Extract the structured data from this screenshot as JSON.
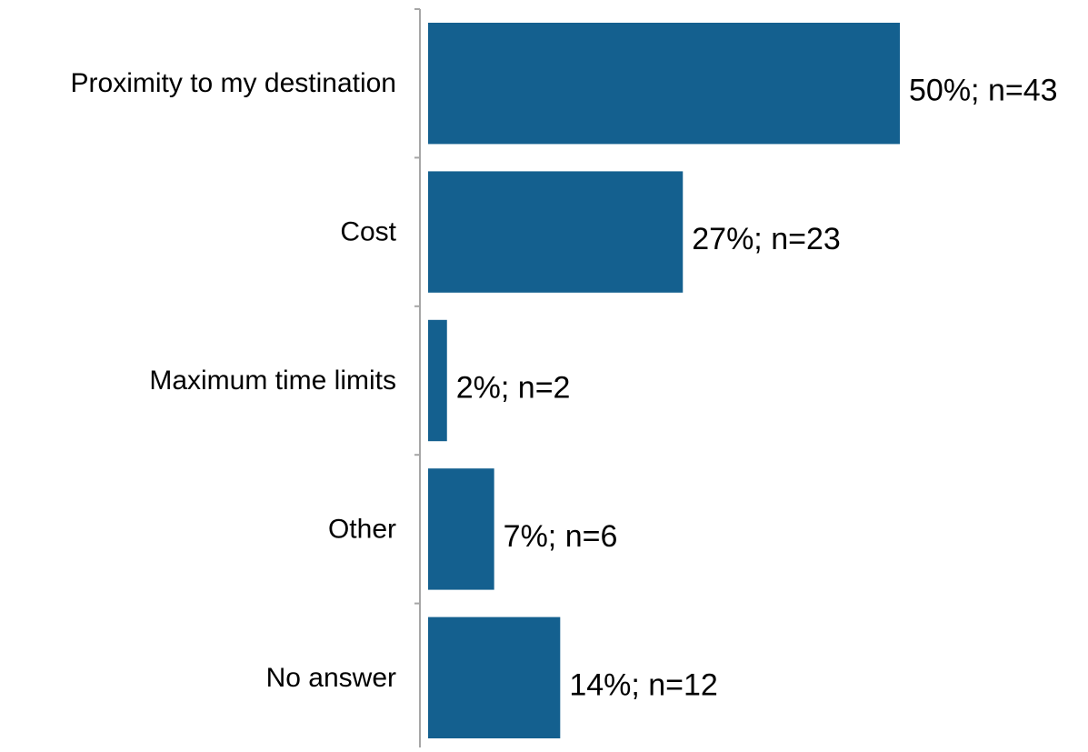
{
  "chart_data": {
    "type": "bar",
    "orientation": "horizontal",
    "categories": [
      "Proximity to my destination",
      "Cost",
      "Maximum time limits",
      "Other",
      "No answer"
    ],
    "values": [
      50,
      27,
      2,
      7,
      14
    ],
    "data_labels": [
      "50%; n=43",
      "27%; n=23",
      "2%; n=2",
      "7%; n=6",
      "14%; n=12"
    ],
    "title": "",
    "xlabel": "",
    "ylabel": "",
    "xlim": [
      0,
      50
    ],
    "grid": false,
    "legend": "none",
    "colors": {
      "bar": "#14608F",
      "axis": "#A6A6A6",
      "text": "#000000"
    }
  }
}
